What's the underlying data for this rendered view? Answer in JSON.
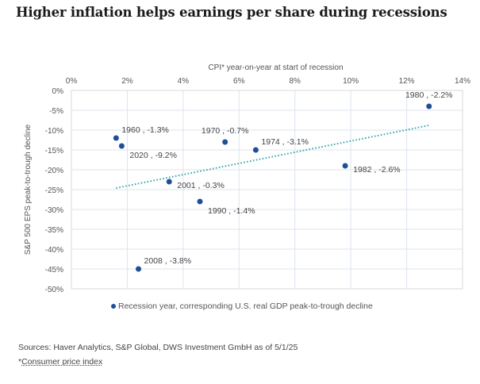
{
  "title": "Higher inflation helps earnings per share during recessions",
  "legend_label": "Recession year, corresponding U.S. real GDP peak-to-trough decline",
  "sources": "Sources: Haver Analytics, S&P Global, DWS Investment GmbH as of 5/1/25",
  "footnote_star": "*",
  "footnote_text": "Consumer price index",
  "colors": {
    "point": "#1f4e99",
    "trend": "#3aa6b0",
    "grid": "#dde3ee",
    "frame": "#d8d8d8"
  },
  "chart_data": {
    "type": "scatter",
    "title": "Higher inflation helps earnings per share during recessions",
    "xlabel": "CPI* year-on-year at start of recession",
    "ylabel": "S&P 500 EPS peak-to-trough decline",
    "xlim": [
      0,
      14
    ],
    "ylim": [
      -50,
      0
    ],
    "x_ticks": [
      "0%",
      "2%",
      "4%",
      "6%",
      "8%",
      "10%",
      "12%",
      "14%"
    ],
    "y_ticks": [
      "0%",
      "-5%",
      "-10%",
      "-15%",
      "-20%",
      "-25%",
      "-30%",
      "-35%",
      "-40%",
      "-45%",
      "-50%"
    ],
    "grid": true,
    "x_axis_position": "top",
    "legend_position": "bottom",
    "points": [
      {
        "label": "1960 , -1.3%",
        "x": 1.6,
        "y": -12,
        "label_pos": "top-right"
      },
      {
        "label": "2020 , -9.2%",
        "x": 1.8,
        "y": -14,
        "label_pos": "bottom-right"
      },
      {
        "label": "2001 , -0.3%",
        "x": 3.5,
        "y": -23,
        "label_pos": "right"
      },
      {
        "label": "1990 , -1.4%",
        "x": 4.6,
        "y": -28,
        "label_pos": "bottom-right"
      },
      {
        "label": "1970 , -0.7%",
        "x": 5.5,
        "y": -13,
        "label_pos": "top"
      },
      {
        "label": "1974 , -3.1%",
        "x": 6.6,
        "y": -15,
        "label_pos": "top-right"
      },
      {
        "label": "1982 , -2.6%",
        "x": 9.8,
        "y": -19,
        "label_pos": "right"
      },
      {
        "label": "1980 , -2.2%",
        "x": 12.8,
        "y": -4,
        "label_pos": "top"
      },
      {
        "label": "2008 , -3.8%",
        "x": 2.4,
        "y": -45,
        "label_pos": "top-right"
      }
    ],
    "trendline": {
      "style": "dotted",
      "x0": 1.6,
      "y0": -24.6,
      "x1": 12.8,
      "y1": -8.8
    },
    "legend": [
      "Recession year, corresponding U.S. real GDP peak-to-trough decline"
    ]
  }
}
